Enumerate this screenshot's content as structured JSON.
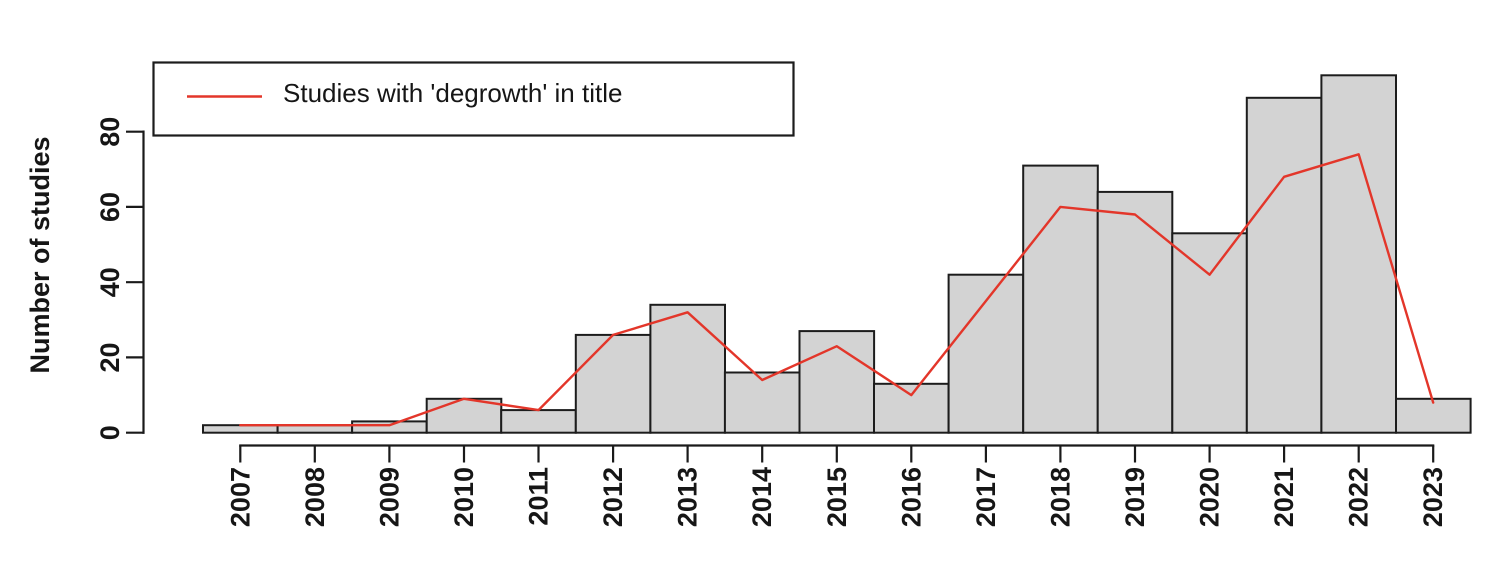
{
  "figure": {
    "background": "#ffffff"
  },
  "chart_data": {
    "type": "bar",
    "title": "",
    "xlabel": "",
    "ylabel": "Number of studies",
    "categories": [
      "2007",
      "2008",
      "2009",
      "2010",
      "2011",
      "2012",
      "2013",
      "2014",
      "2015",
      "2016",
      "2017",
      "2018",
      "2019",
      "2020",
      "2021",
      "2022",
      "2023"
    ],
    "series": [
      {
        "name": "",
        "type": "bar",
        "values": [
          2,
          2,
          3,
          9,
          6,
          26,
          34,
          16,
          27,
          13,
          42,
          71,
          64,
          53,
          89,
          95,
          9
        ]
      },
      {
        "name": "Studies with 'degrowth' in title",
        "type": "line",
        "values": [
          2,
          2,
          2,
          9,
          6,
          26,
          32,
          14,
          23,
          10,
          35,
          60,
          58,
          42,
          68,
          74,
          8
        ]
      }
    ],
    "legend_label": "Studies with 'degrowth' in title",
    "legend_position": "top-left",
    "yticks": [
      0,
      20,
      40,
      60,
      80
    ],
    "ylim": [
      0,
      100
    ],
    "grid": false,
    "colors": {
      "bar_fill": "#d3d3d3",
      "bar_border": "#1c1c1c",
      "line": "#e3362a",
      "axis": "#1a1a1a",
      "text": "#161616",
      "legend_border": "#1c1c1c",
      "legend_fill": "#ffffff"
    }
  }
}
